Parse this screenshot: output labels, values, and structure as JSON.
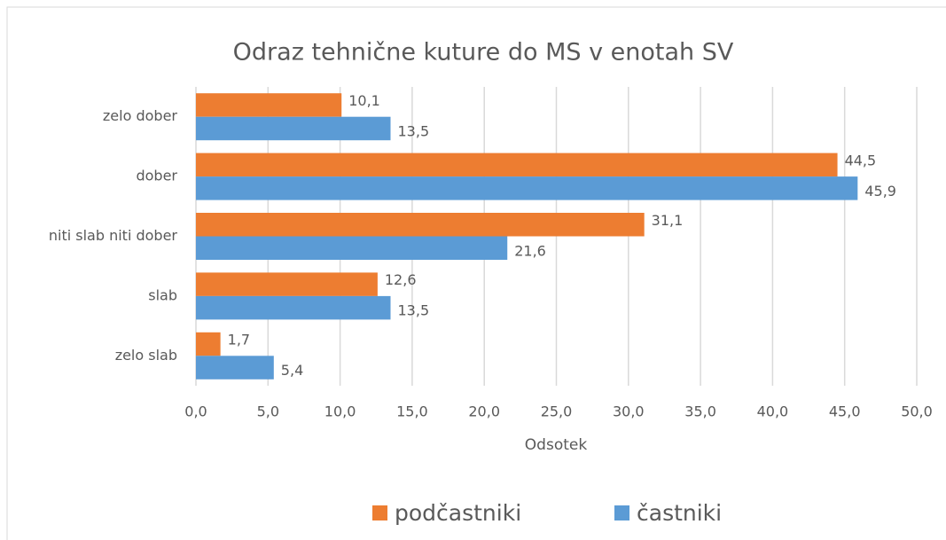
{
  "chart_data": {
    "type": "bar",
    "orientation": "horizontal",
    "title": "Odraz tehnične kuture do MS v enotah SV",
    "x_label": "Odsotek",
    "categories": [
      "zelo dober",
      "dober",
      "niti slab niti dober",
      "slab",
      "zelo slab"
    ],
    "series": [
      {
        "name": "podčastniki",
        "color": "#ED7D31",
        "values": [
          10.1,
          44.5,
          31.1,
          12.6,
          1.7
        ],
        "value_labels": [
          "10,1",
          "44,5",
          "31,1",
          "12,6",
          "1,7"
        ]
      },
      {
        "name": "častniki",
        "color": "#5B9BD5",
        "values": [
          13.5,
          45.9,
          21.6,
          13.5,
          5.4
        ],
        "value_labels": [
          "13,5",
          "45,9",
          "21,6",
          "13,5",
          "5,4"
        ]
      }
    ],
    "xlim": [
      0,
      50
    ],
    "xticks": [
      {
        "value": 0,
        "label": "0,0"
      },
      {
        "value": 5,
        "label": "5,0"
      },
      {
        "value": 10,
        "label": "10,0"
      },
      {
        "value": 15,
        "label": "15,0"
      },
      {
        "value": 20,
        "label": "20,0"
      },
      {
        "value": 25,
        "label": "25,0"
      },
      {
        "value": 30,
        "label": "30,0"
      },
      {
        "value": 35,
        "label": "35,0"
      },
      {
        "value": 40,
        "label": "40,0"
      },
      {
        "value": 45,
        "label": "45,0"
      },
      {
        "value": 50,
        "label": "50,0"
      }
    ],
    "grid": true,
    "legend": "bottom"
  }
}
